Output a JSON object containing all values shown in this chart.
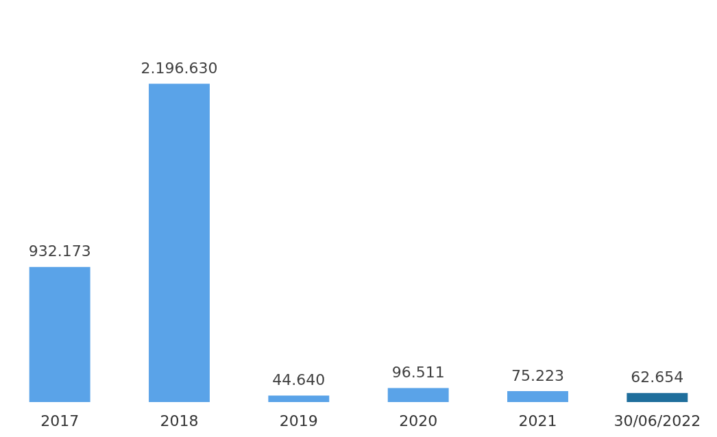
{
  "chart_data": {
    "type": "bar",
    "categories": [
      "2017",
      "2018",
      "2019",
      "2020",
      "2021",
      "30/06/2022"
    ],
    "values": [
      932173,
      2196630,
      44640,
      96511,
      75223,
      62654
    ],
    "value_labels": [
      "932.173",
      "2.196.630",
      "44.640",
      "96.511",
      "75.223",
      "62.654"
    ],
    "colors": [
      "#5aa3e8",
      "#5aa3e8",
      "#5aa3e8",
      "#5aa3e8",
      "#5aa3e8",
      "#1f6e9c"
    ]
  }
}
